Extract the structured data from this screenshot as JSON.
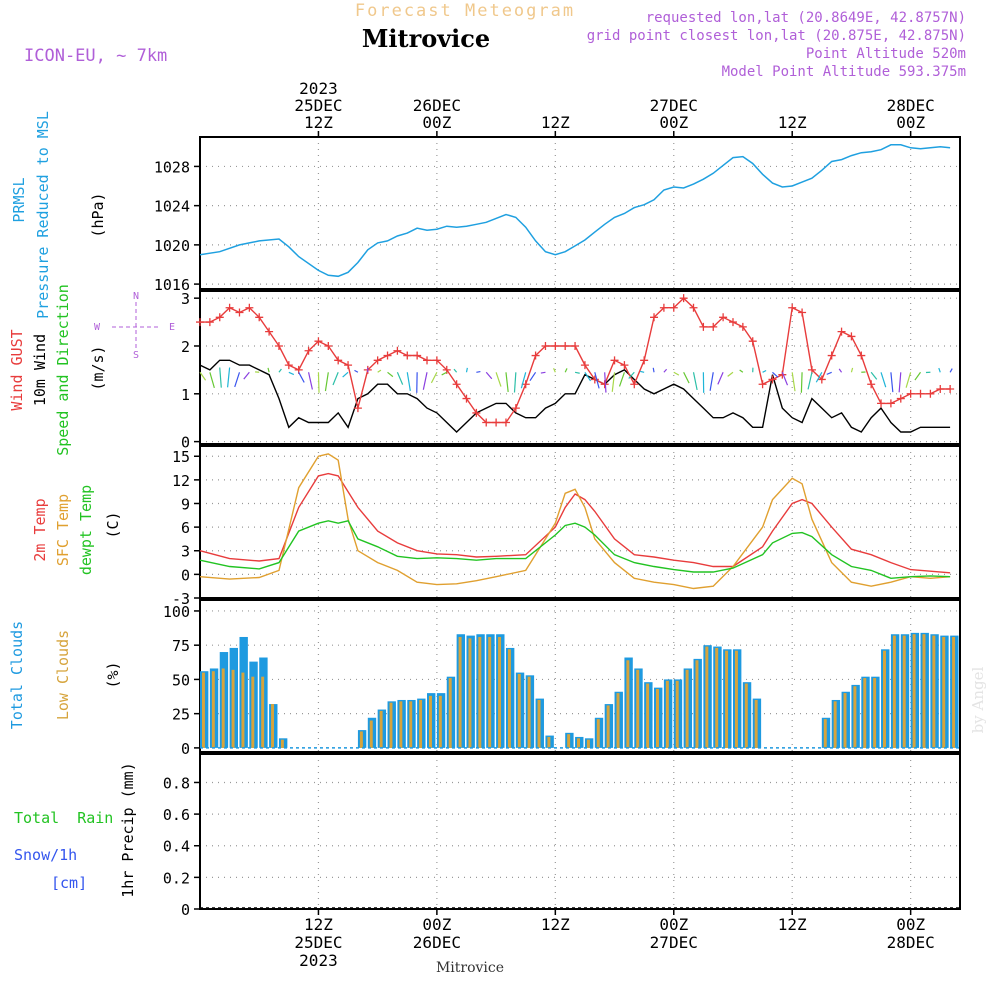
{
  "header": {
    "supertitle": "Forecast Meteogram",
    "location": "Mitrovice",
    "model": "ICON-EU, ~ 7km",
    "requested": "requested lon,lat (20.8649E, 42.8757N)",
    "gridpoint": "grid point closest lon,lat (20.875E, 42.875N)",
    "point_alt": "Point Altitude 520m",
    "model_alt": "Model Point Altitude 593.375m",
    "footer": "Mitrovice",
    "watermark": "by Angel"
  },
  "time_axis": {
    "top_labels": [
      {
        "hour": 12,
        "lines": [
          "2023",
          "25DEC",
          "12Z"
        ]
      },
      {
        "hour": 24,
        "lines": [
          "26DEC",
          "00Z"
        ]
      },
      {
        "hour": 36,
        "lines": [
          "12Z"
        ]
      },
      {
        "hour": 48,
        "lines": [
          "27DEC",
          "00Z"
        ]
      },
      {
        "hour": 60,
        "lines": [
          "12Z"
        ]
      },
      {
        "hour": 72,
        "lines": [
          "28DEC",
          "00Z"
        ]
      }
    ],
    "bottom_labels": [
      {
        "hour": 12,
        "lines": [
          "12Z",
          "25DEC",
          "2023"
        ]
      },
      {
        "hour": 24,
        "lines": [
          "00Z",
          "26DEC"
        ]
      },
      {
        "hour": 36,
        "lines": [
          "12Z"
        ]
      },
      {
        "hour": 48,
        "lines": [
          "00Z",
          "27DEC"
        ]
      },
      {
        "hour": 60,
        "lines": [
          "12Z"
        ]
      },
      {
        "hour": 72,
        "lines": [
          "00Z",
          "28DEC"
        ]
      }
    ],
    "range_hours_from_25DEC_00Z": [
      0,
      77
    ]
  },
  "panels": {
    "pressure": {
      "labels": [
        "PRMSL",
        "Pressure Reduced to MSL"
      ],
      "unit": "(hPa)",
      "ticks": [
        "1016",
        "1020",
        "1024",
        "1028"
      ]
    },
    "wind": {
      "labels": [
        "Wind GUST",
        "10m Wind",
        "Speed and Direction"
      ],
      "unit": "(m/s)",
      "ticks": [
        "0",
        "1",
        "2",
        "3"
      ],
      "compass": {
        "n": "N",
        "s": "S",
        "w": "W",
        "e": "E"
      }
    },
    "temp": {
      "labels": [
        "2m Temp",
        "SFC Temp",
        "dewpt Temp"
      ],
      "unit": "(C)",
      "ticks": [
        "-3",
        "0",
        "3",
        "6",
        "9",
        "12",
        "15"
      ]
    },
    "clouds": {
      "labels": [
        "Total Clouds",
        "Low Clouds"
      ],
      "unit": "(%)",
      "ticks": [
        "0",
        "25",
        "50",
        "75",
        "100"
      ]
    },
    "precip": {
      "labels": [
        "Total  Rain",
        "Snow/1h",
        "[cm]"
      ],
      "unit": "1hr Precip (mm)",
      "ticks": [
        "0",
        "0.2",
        "0.4",
        "0.6",
        "0.8"
      ]
    }
  },
  "colors": {
    "pressure": "#1fa0e0",
    "gust": "#e83c3c",
    "wind10m": "#000000",
    "temp2m": "#e83c3c",
    "sfc": "#e0a030",
    "dewpt": "#22c322",
    "total_clouds": "#1e9ae0",
    "low_clouds": "#d6a43c",
    "rain": "#22c322",
    "snow": "#3355ee",
    "purple": "#b05fd8"
  },
  "chart_data": [
    {
      "type": "line",
      "name": "pressure",
      "title": "PRMSL Pressure Reduced to MSL",
      "ylabel": "(hPa)",
      "ylim": [
        1016,
        1030
      ],
      "x_hours": [
        0,
        2,
        4,
        5,
        6,
        8,
        9,
        10,
        12,
        13,
        14,
        15,
        16,
        17,
        18,
        19,
        20,
        21,
        22,
        23,
        24,
        25,
        26,
        27,
        28,
        29,
        30,
        31,
        32,
        33,
        34,
        35,
        36,
        37,
        38,
        39,
        40,
        41,
        42,
        43,
        44,
        45,
        46,
        47,
        48,
        49,
        50,
        51,
        52,
        53,
        54,
        55,
        56,
        57,
        58,
        59,
        60,
        61,
        62,
        63,
        64,
        65,
        66,
        67,
        68,
        69,
        70,
        71,
        72,
        73,
        74,
        75,
        76
      ],
      "values": [
        1019,
        1019.3,
        1020,
        1020.2,
        1020.4,
        1020.6,
        1019.8,
        1018.8,
        1017.4,
        1016.9,
        1016.8,
        1017.2,
        1018.2,
        1019.5,
        1020.2,
        1020.4,
        1020.9,
        1021.2,
        1021.7,
        1021.5,
        1021.6,
        1021.9,
        1021.8,
        1021.9,
        1022.1,
        1022.3,
        1022.7,
        1023.1,
        1022.8,
        1021.8,
        1020.4,
        1019.3,
        1019.0,
        1019.3,
        1019.9,
        1020.5,
        1021.3,
        1022.1,
        1022.8,
        1023.2,
        1023.8,
        1024.1,
        1024.6,
        1025.6,
        1025.9,
        1025.8,
        1026.2,
        1026.7,
        1027.3,
        1028.1,
        1028.9,
        1029.0,
        1028.3,
        1027.2,
        1026.3,
        1025.9,
        1026.0,
        1026.4,
        1026.8,
        1027.6,
        1028.5,
        1028.7,
        1029.1,
        1029.4,
        1029.5,
        1029.7,
        1030.2,
        1030.2,
        1029.9,
        1029.8,
        1029.9,
        1030.0,
        1029.9
      ]
    },
    {
      "type": "line",
      "name": "wind",
      "title": "Wind GUST / 10m Wind Speed and Direction",
      "ylabel": "(m/s)",
      "ylim": [
        0,
        3.1
      ],
      "x_hours": [
        0,
        1,
        2,
        3,
        4,
        5,
        6,
        7,
        8,
        9,
        10,
        11,
        12,
        13,
        14,
        15,
        16,
        17,
        18,
        19,
        20,
        21,
        22,
        23,
        24,
        25,
        26,
        27,
        28,
        29,
        30,
        31,
        32,
        33,
        34,
        35,
        36,
        37,
        38,
        39,
        40,
        41,
        42,
        43,
        44,
        45,
        46,
        47,
        48,
        49,
        50,
        51,
        52,
        53,
        54,
        55,
        56,
        57,
        58,
        59,
        60,
        61,
        62,
        63,
        64,
        65,
        66,
        67,
        68,
        69,
        70,
        71,
        72,
        73,
        74,
        75,
        76
      ],
      "series": [
        {
          "name": "Wind GUST",
          "values": [
            2.5,
            2.5,
            2.6,
            2.8,
            2.7,
            2.8,
            2.6,
            2.3,
            2.0,
            1.6,
            1.5,
            1.9,
            2.1,
            2.0,
            1.7,
            1.6,
            0.7,
            1.5,
            1.7,
            1.8,
            1.9,
            1.8,
            1.8,
            1.7,
            1.7,
            1.5,
            1.2,
            0.9,
            0.6,
            0.4,
            0.4,
            0.4,
            0.7,
            1.2,
            1.8,
            2.0,
            2.0,
            2.0,
            2.0,
            1.6,
            1.3,
            1.2,
            1.7,
            1.6,
            1.2,
            1.7,
            2.6,
            2.8,
            2.8,
            3.0,
            2.8,
            2.4,
            2.4,
            2.6,
            2.5,
            2.4,
            2.1,
            1.2,
            1.3,
            1.4,
            2.8,
            2.7,
            1.5,
            1.3,
            1.8,
            2.3,
            2.2,
            1.8,
            1.2,
            0.8,
            0.8,
            0.9,
            1.0,
            1.0,
            1.0,
            1.1,
            1.1
          ]
        },
        {
          "name": "10m Wind",
          "values": [
            1.6,
            1.5,
            1.7,
            1.7,
            1.6,
            1.6,
            1.5,
            1.4,
            0.9,
            0.3,
            0.5,
            0.4,
            0.4,
            0.4,
            0.6,
            0.3,
            0.9,
            1.0,
            1.2,
            1.2,
            1.0,
            1.0,
            0.9,
            0.7,
            0.6,
            0.4,
            0.2,
            0.4,
            0.6,
            0.7,
            0.8,
            0.8,
            0.6,
            0.5,
            0.5,
            0.7,
            0.8,
            1.0,
            1.0,
            1.4,
            1.3,
            1.2,
            1.4,
            1.5,
            1.3,
            1.1,
            1.0,
            1.1,
            1.2,
            1.1,
            0.9,
            0.7,
            0.5,
            0.5,
            0.6,
            0.5,
            0.3,
            0.3,
            1.4,
            0.7,
            0.5,
            0.4,
            0.9,
            0.7,
            0.5,
            0.6,
            0.3,
            0.2,
            0.5,
            0.7,
            0.4,
            0.2,
            0.2,
            0.3,
            0.3,
            0.3,
            0.3
          ]
        }
      ]
    },
    {
      "type": "line",
      "name": "temperature",
      "title": "2m Temp / SFC Temp / dewpt Temp",
      "ylabel": "(C)",
      "ylim": [
        -3,
        16
      ],
      "x_hours": [
        0,
        3,
        6,
        8,
        10,
        12,
        13,
        14,
        15,
        16,
        18,
        20,
        22,
        24,
        26,
        28,
        30,
        33,
        36,
        37,
        38,
        39,
        40,
        42,
        44,
        46,
        48,
        50,
        52,
        54,
        57,
        58,
        60,
        61,
        62,
        64,
        66,
        68,
        70,
        72,
        74,
        76
      ],
      "series": [
        {
          "name": "2m Temp",
          "values": [
            3,
            2.0,
            1.7,
            2.0,
            8.5,
            12.5,
            12.8,
            12.5,
            10.5,
            8.5,
            5.5,
            4.0,
            3.0,
            2.6,
            2.5,
            2.2,
            2.3,
            2.5,
            6.0,
            8.5,
            10.2,
            9.5,
            8.0,
            4.5,
            2.5,
            2.2,
            1.8,
            1.5,
            1.0,
            1.0,
            3.5,
            5.5,
            9.0,
            9.5,
            9.0,
            6.0,
            3.2,
            2.5,
            1.5,
            0.6,
            0.4,
            0.2
          ]
        },
        {
          "name": "SFC Temp",
          "values": [
            -0.3,
            -0.6,
            -0.4,
            0.5,
            11.0,
            15.0,
            15.3,
            14.5,
            7.0,
            3.0,
            1.5,
            0.5,
            -1.0,
            -1.3,
            -1.2,
            -0.8,
            -0.3,
            0.5,
            6.5,
            10.3,
            10.8,
            8.5,
            4.5,
            1.5,
            -0.5,
            -1.0,
            -1.3,
            -1.8,
            -1.5,
            1.0,
            6.0,
            9.5,
            12.2,
            11.5,
            7.0,
            1.5,
            -1.0,
            -1.5,
            -1.0,
            -0.3,
            -0.5,
            -0.3
          ]
        },
        {
          "name": "dewpt Temp",
          "values": [
            1.8,
            1.0,
            0.7,
            1.5,
            5.5,
            6.5,
            6.8,
            6.5,
            6.8,
            4.5,
            3.5,
            2.3,
            2.0,
            2.1,
            2.0,
            1.8,
            2.0,
            2.0,
            5.0,
            6.2,
            6.5,
            6.0,
            5.0,
            2.5,
            1.5,
            1.0,
            0.6,
            0.3,
            0.3,
            0.8,
            2.5,
            4.0,
            5.2,
            5.3,
            4.8,
            2.5,
            1.0,
            0.5,
            -0.5,
            -0.3,
            -0.2,
            -0.3
          ]
        }
      ]
    },
    {
      "type": "bar",
      "name": "clouds",
      "title": "Total Clouds / Low Clouds",
      "ylabel": "(%)",
      "ylim": [
        0,
        100
      ],
      "x_hours": [
        0,
        1,
        2,
        3,
        4,
        5,
        6,
        7,
        8,
        9,
        10,
        11,
        12,
        13,
        14,
        15,
        16,
        17,
        18,
        19,
        20,
        21,
        22,
        23,
        24,
        25,
        26,
        27,
        28,
        29,
        30,
        31,
        32,
        33,
        34,
        35,
        36,
        37,
        38,
        39,
        40,
        41,
        42,
        43,
        44,
        45,
        46,
        47,
        48,
        49,
        50,
        51,
        52,
        53,
        54,
        55,
        56,
        57,
        58,
        59,
        60,
        61,
        62,
        63,
        64,
        65,
        66,
        67,
        68,
        69,
        70,
        71,
        72,
        73,
        74,
        75,
        76
      ],
      "series": [
        {
          "name": "Total Clouds",
          "values": [
            56,
            58,
            70,
            73,
            81,
            63,
            66,
            32,
            7,
            0,
            0,
            0,
            0,
            0,
            0,
            0,
            13,
            22,
            28,
            34,
            35,
            35,
            36,
            40,
            40,
            52,
            83,
            82,
            83,
            83,
            83,
            73,
            55,
            53,
            36,
            9,
            0,
            11,
            8,
            7,
            22,
            32,
            41,
            66,
            58,
            48,
            44,
            50,
            50,
            58,
            65,
            75,
            74,
            72,
            72,
            48,
            36,
            0,
            0,
            0,
            0,
            0,
            0,
            22,
            35,
            41,
            46,
            52,
            52,
            72,
            83,
            83,
            84,
            84,
            83,
            82,
            82
          ]
        },
        {
          "name": "Low Clouds",
          "values": [
            55,
            56,
            58,
            57,
            55,
            52,
            52,
            32,
            6,
            0,
            0,
            0,
            0,
            0,
            0,
            0,
            12,
            20,
            27,
            33,
            34,
            34,
            35,
            38,
            38,
            51,
            81,
            80,
            81,
            81,
            81,
            72,
            54,
            52,
            35,
            8,
            0,
            10,
            7,
            6,
            21,
            31,
            40,
            64,
            57,
            47,
            43,
            49,
            49,
            57,
            64,
            74,
            73,
            71,
            71,
            47,
            35,
            0,
            0,
            0,
            0,
            0,
            0,
            21,
            34,
            40,
            45,
            51,
            51,
            71,
            82,
            82,
            83,
            83,
            82,
            81,
            81
          ]
        }
      ]
    },
    {
      "type": "bar",
      "name": "precipitation",
      "title": "1hr Precip (mm)",
      "ylabel": "1hr Precip (mm)",
      "ylim": [
        0,
        1.0
      ],
      "series": [
        {
          "name": "Total Rain",
          "values": []
        },
        {
          "name": "Snow/1h",
          "values": []
        }
      ]
    }
  ]
}
